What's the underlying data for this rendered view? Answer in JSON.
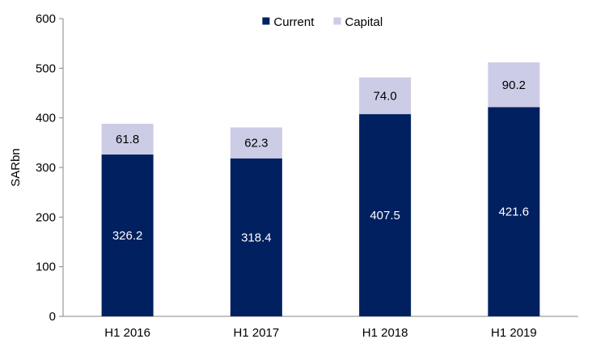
{
  "chart_data": {
    "type": "bar",
    "stacked": true,
    "categories": [
      "H1 2016",
      "H1 2017",
      "H1 2018",
      "H1 2019"
    ],
    "series": [
      {
        "name": "Current",
        "values": [
          326.2,
          318.4,
          407.5,
          421.6
        ],
        "labels": [
          "326.2",
          "318.4",
          "407.5",
          "421.6"
        ],
        "color": "#002060",
        "label_color": "#ffffff"
      },
      {
        "name": "Capital",
        "values": [
          61.8,
          62.3,
          74.0,
          90.2
        ],
        "labels": [
          "61.8",
          "62.3",
          "74.0",
          "90.2"
        ],
        "color": "#CCCCE6",
        "label_color": "#000000"
      }
    ],
    "title": "",
    "xlabel": "",
    "ylabel": "SARbn",
    "ylim": [
      0,
      600
    ],
    "yticks": [
      0,
      100,
      200,
      300,
      400,
      500,
      600
    ],
    "grid": false,
    "legend": "top-center"
  }
}
